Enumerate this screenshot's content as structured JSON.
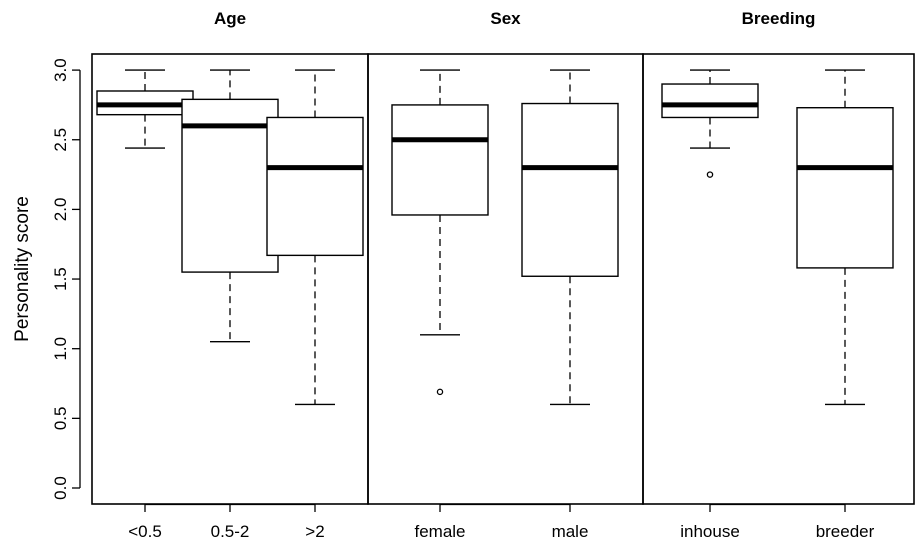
{
  "chart_data": {
    "type": "boxplot",
    "ylabel": "Personality score",
    "ylim": [
      0,
      3
    ],
    "yticks": [
      "0.0",
      "0.5",
      "1.0",
      "1.5",
      "2.0",
      "2.5",
      "3.0"
    ],
    "grid": false,
    "panels": [
      {
        "title": "Age",
        "boxes": [
          {
            "label": "<0.5",
            "min": 2.44,
            "q1": 2.68,
            "median": 2.75,
            "q3": 2.85,
            "max": 3.0,
            "outliers": []
          },
          {
            "label": "0.5-2",
            "min": 1.05,
            "q1": 1.55,
            "median": 2.6,
            "q3": 2.79,
            "max": 3.0,
            "outliers": []
          },
          {
            "label": ">2",
            "min": 0.6,
            "q1": 1.67,
            "median": 2.3,
            "q3": 2.66,
            "max": 3.0,
            "outliers": []
          }
        ]
      },
      {
        "title": "Sex",
        "boxes": [
          {
            "label": "female",
            "min": 1.1,
            "q1": 1.96,
            "median": 2.5,
            "q3": 2.75,
            "max": 3.0,
            "outliers": [
              0.69
            ]
          },
          {
            "label": "male",
            "min": 0.6,
            "q1": 1.52,
            "median": 2.3,
            "q3": 2.76,
            "max": 3.0,
            "outliers": []
          }
        ]
      },
      {
        "title": "Breeding",
        "boxes": [
          {
            "label": "inhouse",
            "min": 2.44,
            "q1": 2.66,
            "median": 2.75,
            "q3": 2.9,
            "max": 3.0,
            "outliers": [
              2.25
            ]
          },
          {
            "label": "breeder",
            "min": 0.6,
            "q1": 1.58,
            "median": 2.3,
            "q3": 2.73,
            "max": 3.0,
            "outliers": []
          }
        ]
      }
    ]
  }
}
